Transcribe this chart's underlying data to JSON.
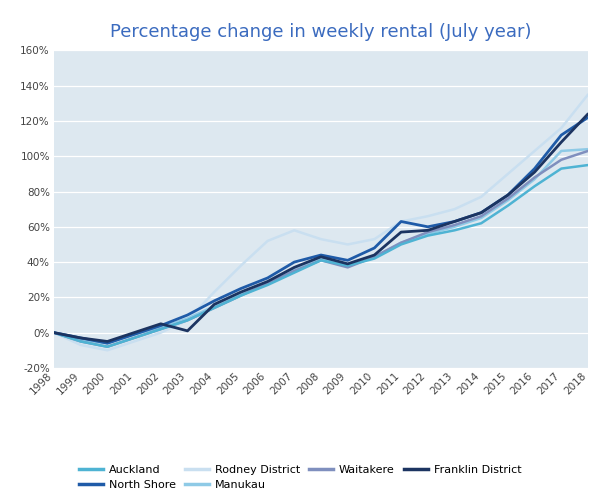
{
  "title": "Percentage change in weekly rental (July year)",
  "title_color": "#3b6bbf",
  "background_color": "#dde8f0",
  "fig_bg_color": "#ffffff",
  "years": [
    1998,
    1999,
    2000,
    2001,
    2002,
    2003,
    2004,
    2005,
    2006,
    2007,
    2008,
    2009,
    2010,
    2011,
    2012,
    2013,
    2014,
    2015,
    2016,
    2017,
    2018
  ],
  "series": [
    {
      "name": "Auckland",
      "color": "#4eb3d3",
      "linewidth": 1.8,
      "zorder": 4,
      "values": [
        0,
        -5,
        -8,
        -3,
        2,
        7,
        14,
        21,
        27,
        34,
        41,
        38,
        42,
        50,
        55,
        58,
        62,
        72,
        83,
        93,
        95
      ]
    },
    {
      "name": "North Shore",
      "color": "#1f5ba8",
      "linewidth": 2.0,
      "zorder": 5,
      "values": [
        0,
        -3,
        -6,
        -1,
        4,
        10,
        18,
        25,
        31,
        40,
        44,
        41,
        48,
        63,
        60,
        63,
        68,
        78,
        93,
        112,
        122
      ]
    },
    {
      "name": "Rodney District",
      "color": "#c9dff0",
      "linewidth": 1.8,
      "zorder": 2,
      "values": [
        0,
        -7,
        -10,
        -5,
        0,
        7,
        23,
        38,
        52,
        58,
        53,
        50,
        53,
        63,
        66,
        70,
        77,
        90,
        103,
        116,
        135
      ]
    },
    {
      "name": "Manukau",
      "color": "#8ecae6",
      "linewidth": 1.8,
      "zorder": 3,
      "values": [
        0,
        -4,
        -6,
        -1,
        3,
        8,
        15,
        22,
        28,
        36,
        42,
        38,
        43,
        51,
        56,
        60,
        65,
        75,
        87,
        103,
        104
      ]
    },
    {
      "name": "Waitakere",
      "color": "#7f8fbe",
      "linewidth": 1.8,
      "zorder": 3,
      "values": [
        0,
        -5,
        -8,
        -3,
        2,
        7,
        14,
        21,
        28,
        35,
        41,
        37,
        43,
        51,
        57,
        61,
        66,
        76,
        88,
        98,
        103
      ]
    },
    {
      "name": "Franklin District",
      "color": "#1c3461",
      "linewidth": 2.0,
      "zorder": 5,
      "values": [
        0,
        -3,
        -5,
        0,
        5,
        1,
        16,
        23,
        29,
        37,
        43,
        39,
        44,
        57,
        58,
        63,
        68,
        78,
        91,
        108,
        124
      ]
    }
  ],
  "ylim": [
    -20,
    160
  ],
  "yticks": [
    -20,
    0,
    20,
    40,
    60,
    80,
    100,
    120,
    140,
    160
  ],
  "legend_order": [
    "Auckland",
    "North Shore",
    "Rodney District",
    "Manukau",
    "Waitakere",
    "Franklin District"
  ]
}
